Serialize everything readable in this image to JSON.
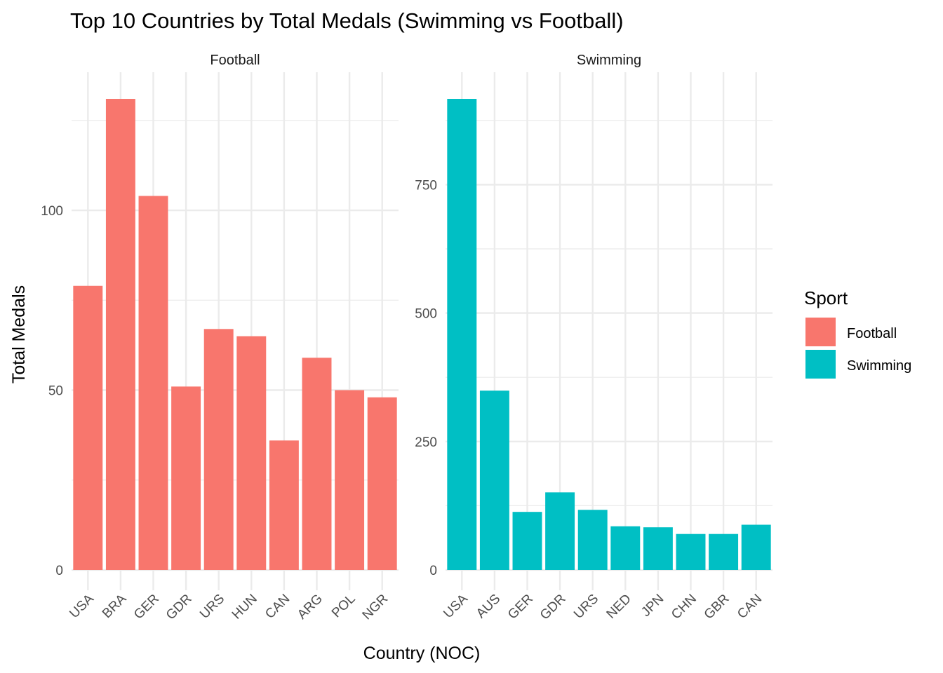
{
  "chart_data": {
    "type": "bar",
    "title": "Top 10 Countries by Total Medals (Swimming vs Football)",
    "xlabel": "Country (NOC)",
    "ylabel": "Total Medals",
    "grid": true,
    "legend": {
      "title": "Sport",
      "placement": "right",
      "entries": [
        {
          "name": "Football",
          "color": "#F8766D"
        },
        {
          "name": "Swimming",
          "color": "#00BFC4"
        }
      ]
    },
    "facets": [
      {
        "name": "Football",
        "color": "#F8766D",
        "categories": [
          "USA",
          "BRA",
          "GER",
          "GDR",
          "URS",
          "HUN",
          "CAN",
          "ARG",
          "POL",
          "NGR"
        ],
        "values": [
          79,
          131,
          104,
          51,
          67,
          65,
          36,
          59,
          50,
          48
        ],
        "ylim": [
          0,
          131
        ],
        "yticks": [
          0,
          50,
          100
        ],
        "ytick_labels": [
          "0",
          "50",
          "100"
        ],
        "minor_yticks": [
          25,
          75,
          125
        ]
      },
      {
        "name": "Swimming",
        "color": "#00BFC4",
        "categories": [
          "USA",
          "AUS",
          "GER",
          "GDR",
          "URS",
          "NED",
          "JPN",
          "CHN",
          "GBR",
          "CAN"
        ],
        "values": [
          917,
          349,
          113,
          151,
          117,
          85,
          83,
          70,
          70,
          88
        ],
        "ylim": [
          0,
          917
        ],
        "yticks": [
          0,
          250,
          500,
          750
        ],
        "ytick_labels": [
          "0",
          "250",
          "500",
          "750"
        ],
        "minor_yticks": [
          125,
          375,
          625,
          875
        ]
      }
    ]
  }
}
